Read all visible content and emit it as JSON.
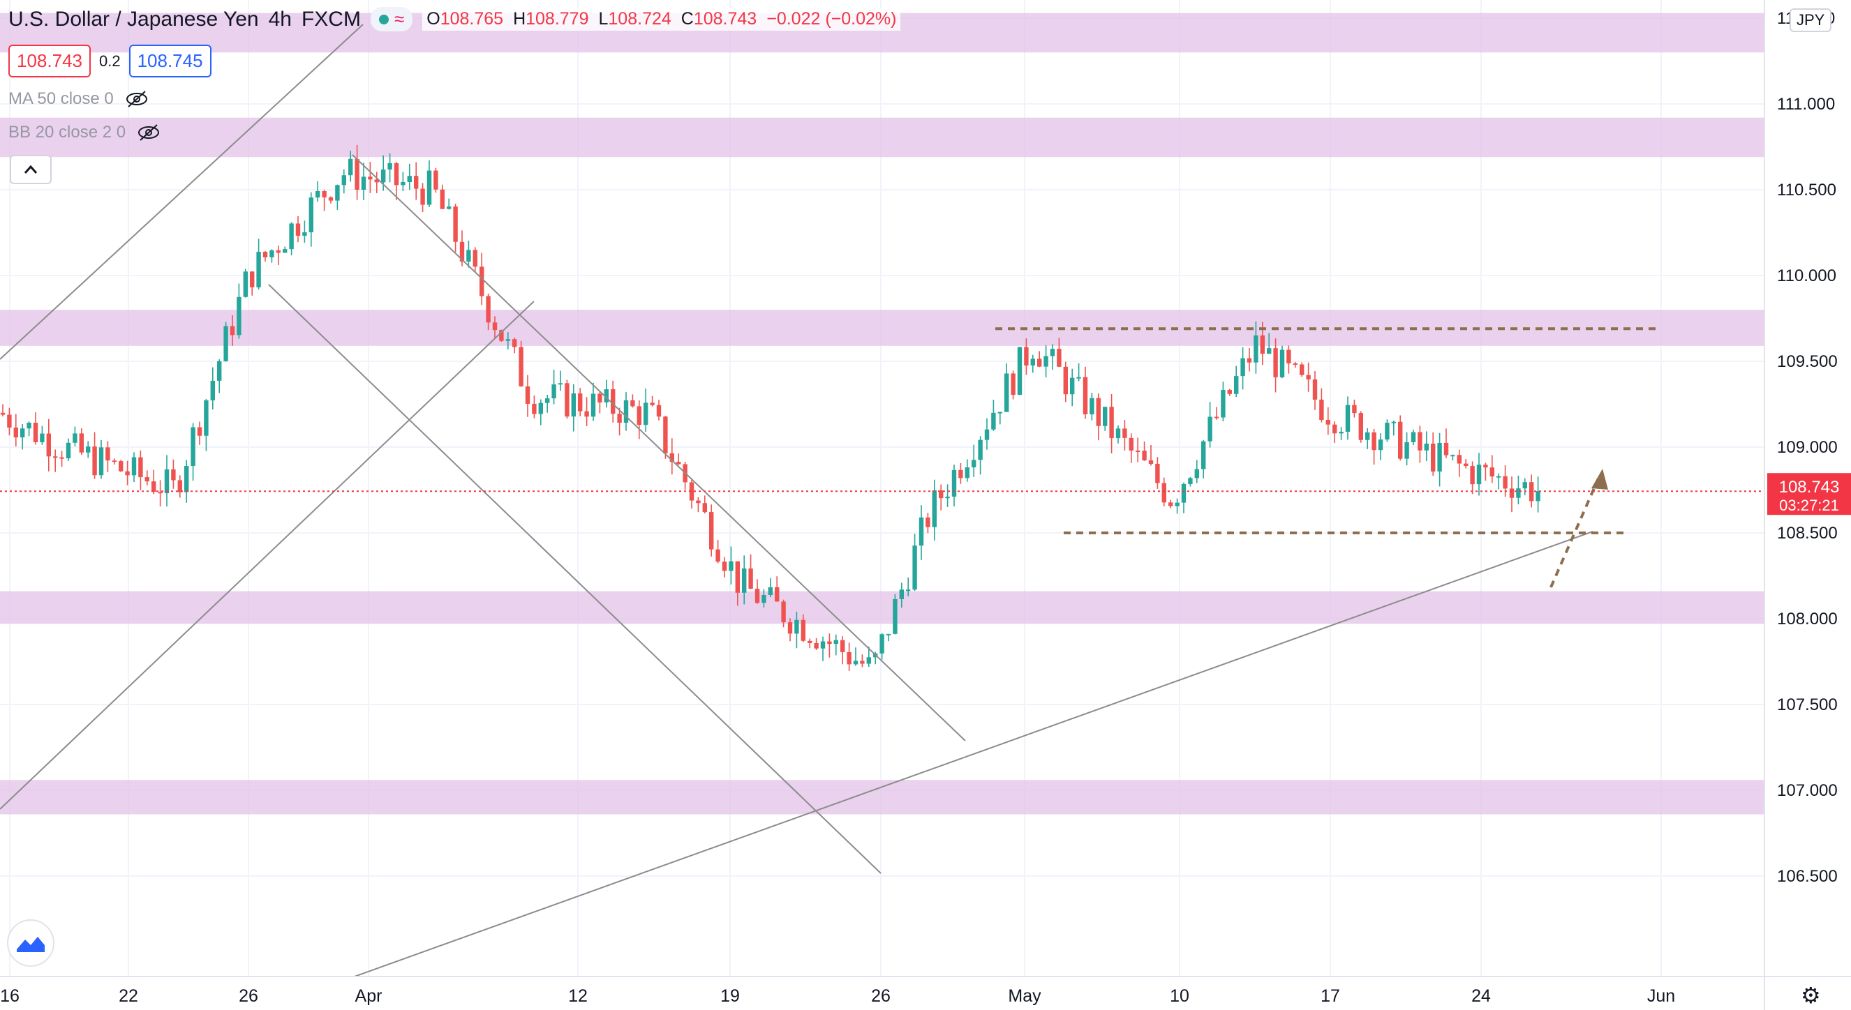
{
  "header": {
    "title": "U.S. Dollar / Japanese Yen",
    "interval": "4h",
    "source": "FXCM",
    "wave_symbol": "≈",
    "o_label": "O",
    "o": "108.765",
    "h_label": "H",
    "h": "108.779",
    "l_label": "L",
    "l": "108.724",
    "c_label": "C",
    "c": "108.743",
    "change": "−0.022 (−0.02%)"
  },
  "trade": {
    "sell": "108.743",
    "spread": "0.2",
    "buy": "108.745"
  },
  "indicators": [
    {
      "label": "MA 50 close 0"
    },
    {
      "label": "BB 20 close 2 0"
    }
  ],
  "currency": "JPY",
  "icons": {
    "hide": "eye-off-icon",
    "collapse": "chevron-up-icon",
    "logo": "tradingview-logo-icon",
    "settings": "gear-icon"
  },
  "colors": {
    "up": "#26a69a",
    "down": "#ef5350",
    "zone": "#e1bee7",
    "trend": "#8c8c8c",
    "level": "#8d6e4f",
    "last_price": "#f23645"
  },
  "chart_data": {
    "type": "candlestick",
    "title": "U.S. Dollar / Japanese Yen",
    "y_ticks": [
      "106.500",
      "107.000",
      "107.500",
      "108.000",
      "108.500",
      "109.000",
      "109.500",
      "110.000",
      "110.500",
      "111.000",
      "111.500"
    ],
    "x_ticks": [
      "16",
      "22",
      "26",
      "Apr",
      "12",
      "19",
      "26",
      "May",
      "10",
      "17",
      "24",
      "Jun"
    ],
    "ylim": [
      106.4,
      111.9
    ],
    "last_price": {
      "value": "108.743",
      "countdown": "03:27:21"
    },
    "support_zones": [
      {
        "from": 111.3,
        "to": 111.53
      },
      {
        "from": 110.69,
        "to": 110.92
      },
      {
        "from": 109.59,
        "to": 109.8
      },
      {
        "from": 107.97,
        "to": 108.16
      },
      {
        "from": 106.86,
        "to": 107.06
      }
    ],
    "horizontal_levels": [
      109.69,
      108.5
    ],
    "path": [
      [
        "16",
        109.2
      ],
      [
        "22",
        108.75
      ],
      [
        "26",
        110.0
      ],
      [
        "Apr",
        110.6
      ],
      [
        "12",
        109.2
      ],
      [
        "19",
        108.2
      ],
      [
        "26",
        107.7
      ],
      [
        "May",
        109.6
      ],
      [
        "10",
        108.7
      ],
      [
        "17",
        109.1
      ],
      [
        "24",
        108.8
      ]
    ],
    "gridlines": true,
    "annotation": "projected upward arrow"
  }
}
